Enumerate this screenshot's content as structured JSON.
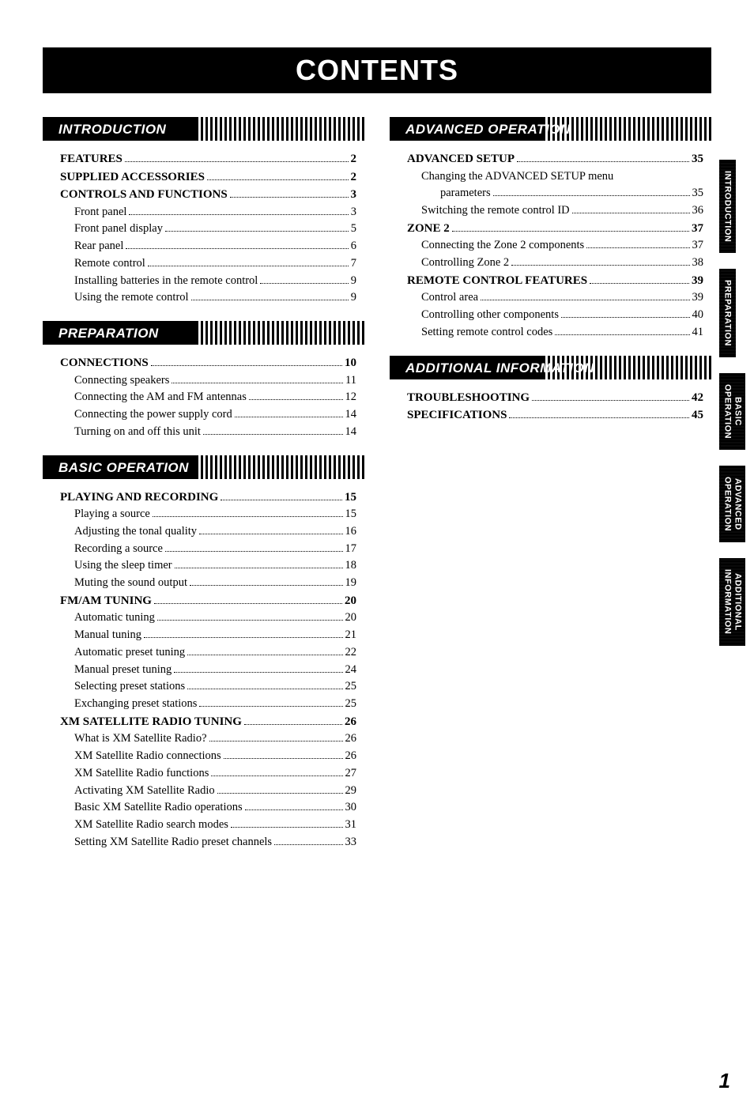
{
  "banner": "CONTENTS",
  "page_number": "1",
  "tabs": [
    {
      "line1": "",
      "line2": "INTRODUCTION"
    },
    {
      "line1": "",
      "line2": "PREPARATION"
    },
    {
      "line1": "BASIC",
      "line2": "OPERATION"
    },
    {
      "line1": "ADVANCED",
      "line2": "OPERATION"
    },
    {
      "line1": "ADDITIONAL",
      "line2": "INFORMATION"
    }
  ],
  "sections": {
    "introduction": {
      "title": "INTRODUCTION",
      "items": [
        {
          "label": "FEATURES",
          "page": "2",
          "level": "chapter"
        },
        {
          "label": "SUPPLIED ACCESSORIES",
          "page": "2",
          "level": "chapter"
        },
        {
          "label": "CONTROLS AND FUNCTIONS",
          "page": "3",
          "level": "chapter"
        },
        {
          "label": "Front panel",
          "page": "3",
          "level": "sub1"
        },
        {
          "label": "Front panel display",
          "page": "5",
          "level": "sub1"
        },
        {
          "label": "Rear panel",
          "page": "6",
          "level": "sub1"
        },
        {
          "label": "Remote control",
          "page": "7",
          "level": "sub1"
        },
        {
          "label": "Installing batteries in the remote control",
          "page": "9",
          "level": "sub1"
        },
        {
          "label": "Using the remote control",
          "page": "9",
          "level": "sub1"
        }
      ]
    },
    "preparation": {
      "title": "PREPARATION",
      "items": [
        {
          "label": "CONNECTIONS",
          "page": "10",
          "level": "chapter"
        },
        {
          "label": "Connecting speakers",
          "page": "11",
          "level": "sub1"
        },
        {
          "label": "Connecting the AM and FM antennas",
          "page": "12",
          "level": "sub1"
        },
        {
          "label": "Connecting the power supply cord",
          "page": "14",
          "level": "sub1"
        },
        {
          "label": "Turning on and off this unit",
          "page": "14",
          "level": "sub1"
        }
      ]
    },
    "basic_operation": {
      "title": "BASIC OPERATION",
      "items": [
        {
          "label": "PLAYING AND RECORDING",
          "page": "15",
          "level": "chapter"
        },
        {
          "label": "Playing a source",
          "page": "15",
          "level": "sub1"
        },
        {
          "label": "Adjusting the tonal quality",
          "page": "16",
          "level": "sub1"
        },
        {
          "label": "Recording a source",
          "page": "17",
          "level": "sub1"
        },
        {
          "label": "Using the sleep timer",
          "page": "18",
          "level": "sub1"
        },
        {
          "label": "Muting the sound output",
          "page": "19",
          "level": "sub1"
        },
        {
          "label": "FM/AM TUNING",
          "page": "20",
          "level": "chapter"
        },
        {
          "label": "Automatic tuning",
          "page": "20",
          "level": "sub1"
        },
        {
          "label": "Manual tuning",
          "page": "21",
          "level": "sub1"
        },
        {
          "label": "Automatic preset tuning",
          "page": "22",
          "level": "sub1"
        },
        {
          "label": "Manual preset tuning",
          "page": "24",
          "level": "sub1"
        },
        {
          "label": "Selecting preset stations",
          "page": "25",
          "level": "sub1"
        },
        {
          "label": "Exchanging preset stations",
          "page": "25",
          "level": "sub1"
        },
        {
          "label": "XM SATELLITE RADIO TUNING",
          "page": "26",
          "level": "chapter"
        },
        {
          "label": "What is XM Satellite Radio?",
          "page": "26",
          "level": "sub1"
        },
        {
          "label": "XM Satellite Radio connections",
          "page": "26",
          "level": "sub1"
        },
        {
          "label": "XM Satellite Radio functions",
          "page": "27",
          "level": "sub1"
        },
        {
          "label": "Activating XM Satellite Radio",
          "page": "29",
          "level": "sub1"
        },
        {
          "label": "Basic XM Satellite Radio operations",
          "page": "30",
          "level": "sub1"
        },
        {
          "label": "XM Satellite Radio search modes",
          "page": "31",
          "level": "sub1"
        },
        {
          "label": "Setting XM Satellite Radio preset channels",
          "page": "33",
          "level": "sub1"
        }
      ]
    },
    "advanced_operation": {
      "title": "ADVANCED OPERATION",
      "items": [
        {
          "label": "ADVANCED SETUP",
          "page": "35",
          "level": "chapter"
        },
        {
          "label": "Changing the ADVANCED SETUP menu",
          "page": "",
          "level": "sub1",
          "nodots": true
        },
        {
          "label": "parameters",
          "page": "35",
          "level": "sub2"
        },
        {
          "label": "Switching the remote control ID",
          "page": "36",
          "level": "sub1"
        },
        {
          "label": "ZONE 2",
          "page": "37",
          "level": "chapter"
        },
        {
          "label": "Connecting the Zone 2 components",
          "page": "37",
          "level": "sub1"
        },
        {
          "label": "Controlling Zone 2",
          "page": "38",
          "level": "sub1"
        },
        {
          "label": "REMOTE CONTROL FEATURES",
          "page": "39",
          "level": "chapter"
        },
        {
          "label": "Control area",
          "page": "39",
          "level": "sub1"
        },
        {
          "label": "Controlling other components",
          "page": "40",
          "level": "sub1"
        },
        {
          "label": "Setting remote control codes",
          "page": "41",
          "level": "sub1"
        }
      ]
    },
    "additional_information": {
      "title": "ADDITIONAL INFORMATION",
      "items": [
        {
          "label": "TROUBLESHOOTING",
          "page": "42",
          "level": "chapter"
        },
        {
          "label": "SPECIFICATIONS",
          "page": "45",
          "level": "chapter"
        }
      ]
    }
  }
}
